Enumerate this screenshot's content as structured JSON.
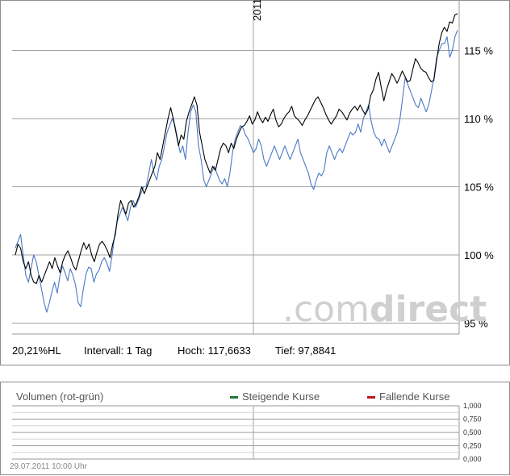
{
  "chart_data": [
    {
      "type": "line",
      "x_label": "2011",
      "y_ticks": [
        "115 %",
        "110 %",
        "105 %",
        "100 %",
        "95 %"
      ],
      "y_tick_values": [
        115,
        110,
        105,
        100,
        95
      ],
      "ylim": [
        94.2,
        118.7
      ],
      "grid": true,
      "series": [
        {
          "color": "#000000",
          "values": [
            100.0,
            100.8,
            100.5,
            99.5,
            99.0,
            99.5,
            98.5,
            98.0,
            97.9,
            98.5,
            98.0,
            98.5,
            99.0,
            99.5,
            99.0,
            99.8,
            99.2,
            98.7,
            99.5,
            100.0,
            100.3,
            99.8,
            99.2,
            98.9,
            99.6,
            100.3,
            100.9,
            100.4,
            100.8,
            100.0,
            99.5,
            100.2,
            100.8,
            101.0,
            100.7,
            100.3,
            99.8,
            100.8,
            101.5,
            103.0,
            104.0,
            103.5,
            103.0,
            103.8,
            104.0,
            103.5,
            103.8,
            104.3,
            105.0,
            104.5,
            105.0,
            105.5,
            106.0,
            106.5,
            107.5,
            107.0,
            108.0,
            109.0,
            110.0,
            110.8,
            110.0,
            109.0,
            108.0,
            108.8,
            108.5,
            109.8,
            110.5,
            111.0,
            111.6,
            111.0,
            109.0,
            108.0,
            107.0,
            106.5,
            106.0,
            106.5,
            106.2,
            107.0,
            107.8,
            108.2,
            108.0,
            107.5,
            108.2,
            107.8,
            108.5,
            109.0,
            109.4,
            109.5,
            109.8,
            110.2,
            109.6,
            109.9,
            110.5,
            110.0,
            109.7,
            110.1,
            109.8,
            110.3,
            110.7,
            109.9,
            109.4,
            109.6,
            110.0,
            110.3,
            110.5,
            110.9,
            110.2,
            110.0,
            109.8,
            109.5,
            109.9,
            110.2,
            110.6,
            111.0,
            111.4,
            111.6,
            111.2,
            110.8,
            110.3,
            109.9,
            109.6,
            109.9,
            110.2,
            110.7,
            110.5,
            110.2,
            109.9,
            110.4,
            110.7,
            110.9,
            110.6,
            111.0,
            110.6,
            110.3,
            110.7,
            111.7,
            112.1,
            112.9,
            113.4,
            112.3,
            111.3,
            112.1,
            112.7,
            113.3,
            113.0,
            112.6,
            113.0,
            113.5,
            113.1,
            112.7,
            112.8,
            113.6,
            114.4,
            114.1,
            113.7,
            113.5,
            113.4,
            113.0,
            112.7,
            112.8,
            114.2,
            115.5,
            116.3,
            116.7,
            116.4,
            117.1,
            117.0,
            117.6,
            117.7
          ]
        },
        {
          "color": "#4a78c5",
          "values": [
            100.5,
            101.0,
            101.5,
            100.0,
            98.5,
            98.0,
            99.0,
            100.0,
            99.5,
            98.5,
            97.5,
            96.5,
            95.8,
            96.5,
            97.3,
            98.0,
            97.2,
            98.4,
            99.2,
            98.7,
            98.1,
            99.0,
            98.5,
            97.8,
            96.5,
            96.2,
            97.5,
            98.6,
            99.1,
            99.0,
            98.0,
            98.6,
            98.9,
            99.5,
            99.8,
            99.4,
            98.8,
            100.0,
            101.5,
            102.5,
            103.0,
            103.5,
            103.0,
            102.5,
            103.5,
            104.0,
            103.5,
            104.0,
            104.5,
            105.0,
            105.0,
            106.0,
            107.0,
            106.0,
            105.5,
            106.5,
            107.0,
            108.0,
            109.0,
            109.5,
            110.0,
            109.5,
            108.5,
            107.5,
            108.0,
            107.0,
            109.0,
            110.5,
            111.0,
            110.5,
            108.0,
            107.0,
            105.5,
            105.0,
            105.5,
            106.0,
            106.5,
            106.0,
            105.5,
            105.2,
            105.6,
            105.0,
            106.0,
            107.5,
            108.5,
            109.0,
            109.5,
            109.3,
            108.8,
            108.5,
            108.0,
            107.5,
            107.8,
            108.5,
            108.0,
            107.0,
            106.5,
            107.0,
            107.5,
            108.0,
            107.5,
            107.0,
            107.5,
            108.0,
            107.5,
            107.0,
            107.5,
            108.0,
            108.5,
            107.5,
            107.0,
            106.5,
            106.0,
            105.2,
            104.8,
            105.5,
            106.0,
            105.8,
            106.2,
            107.5,
            108.0,
            107.5,
            107.0,
            107.5,
            107.8,
            107.5,
            108.0,
            108.5,
            109.0,
            108.8,
            109.0,
            109.6,
            109.0,
            110.0,
            110.5,
            111.0,
            109.8,
            109.0,
            108.6,
            108.5,
            108.0,
            108.5,
            108.0,
            107.5,
            108.0,
            108.5,
            109.0,
            110.0,
            111.5,
            113.0,
            112.5,
            112.0,
            111.5,
            111.0,
            110.8,
            111.5,
            111.0,
            110.5,
            111.0,
            112.0,
            113.0,
            114.5,
            115.0,
            115.5,
            115.5,
            116.0,
            114.5,
            115.0,
            116.0,
            116.5
          ]
        }
      ]
    },
    {
      "type": "bar",
      "title": "Volumen (rot-grün)",
      "y_ticks": [
        "1,000",
        "0,750",
        "0,500",
        "0,250",
        "0,000"
      ],
      "y_tick_values": [
        1.0,
        0.75,
        0.5,
        0.25,
        0.0
      ],
      "ylim": [
        0,
        1
      ],
      "legend": [
        {
          "label": "Steigende Kurse",
          "color": "#1f7a3a"
        },
        {
          "label": "Fallende Kurse",
          "color": "#c0141c"
        }
      ],
      "legend_position": "top-right",
      "values": []
    }
  ],
  "stats": {
    "hl": "20,21%HL",
    "interval": "Intervall: 1 Tag",
    "high": "Hoch: 117,6633",
    "low": "Tief: 97,8841"
  },
  "watermark": "comdirect",
  "timestamp": "29.07.2011 10:00 Uhr"
}
